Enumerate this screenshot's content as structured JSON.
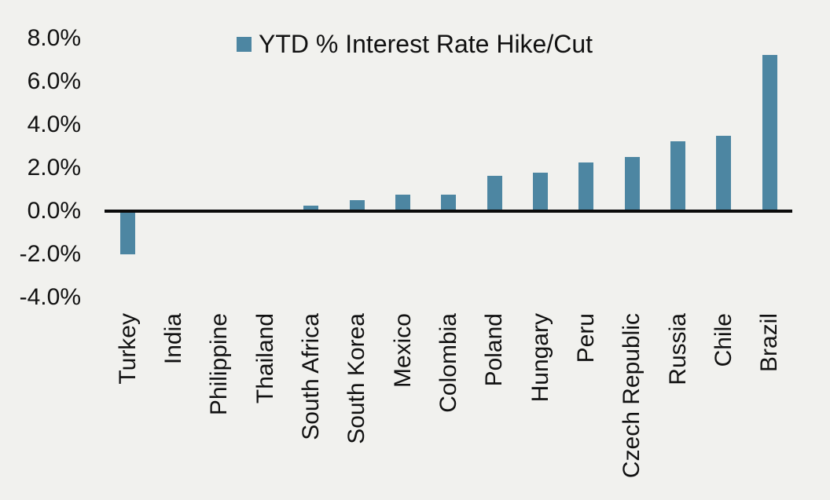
{
  "page": {
    "background": "#f1f1ee",
    "text_color": "#111111"
  },
  "chart_data": {
    "type": "bar",
    "title": "",
    "legend": {
      "label": "YTD % Interest Rate Hike/Cut",
      "marker_color": "#4d86a2",
      "position": "top-center"
    },
    "categories": [
      "Turkey",
      "India",
      "Philippine",
      "Thailand",
      "South Africa",
      "South Korea",
      "Mexico",
      "Colombia",
      "Poland",
      "Hungary",
      "Peru",
      "Czech Republic",
      "Russia",
      "Chile",
      "Brazil"
    ],
    "values": [
      -2.0,
      0,
      0,
      0,
      0.25,
      0.5,
      0.75,
      0.75,
      1.65,
      1.8,
      2.25,
      2.5,
      3.25,
      3.5,
      7.25
    ],
    "unit": "%",
    "bar_color": "#4d86a2",
    "axis_line_color": "#0b0b0b",
    "ylim": [
      -4,
      8
    ],
    "ytick_step": 2,
    "ytick_labels": [
      "8.0%",
      "6.0%",
      "4.0%",
      "2.0%",
      "0.0%",
      "-2.0%",
      "-4.0%"
    ],
    "grid": false,
    "xlabel": "",
    "ylabel": ""
  }
}
